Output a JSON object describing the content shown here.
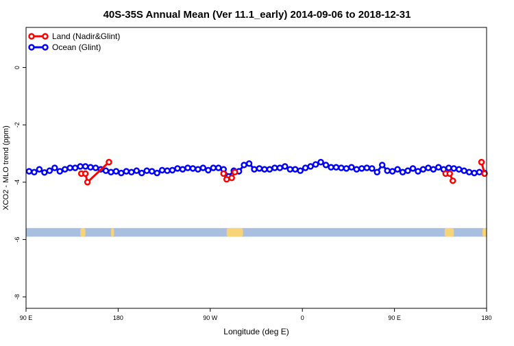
{
  "chart_data": {
    "type": "line",
    "title": "40S-35S Annual Mean (Ver 11.1_early)   2014-09-06 to 2018-12-31",
    "xlabel": "Longitude (deg E)",
    "ylabel": "XCO2 - MLO trend (ppm)",
    "x_tick_labels": [
      "90 E",
      "180",
      "90 W",
      "0",
      "90 E",
      "180"
    ],
    "x_tick_positions": [
      90,
      180,
      270,
      360,
      450,
      540
    ],
    "xlim": [
      90,
      540
    ],
    "y_ticks": [
      0,
      -2,
      -4,
      -6,
      -8
    ],
    "ylim": [
      -8.4,
      1.4
    ],
    "grid": false,
    "legend_position": "top-left",
    "colors": {
      "land": "#ff0000",
      "ocean": "#0000ff",
      "water_band": "#a8bfe0",
      "land_band": "#f7d37a"
    },
    "land_band_y": [
      -5.6,
      -5.9
    ],
    "land_patches": [
      [
        143,
        148
      ],
      [
        173,
        176
      ],
      [
        286,
        302
      ],
      [
        499,
        508
      ],
      [
        536,
        540
      ]
    ],
    "series": [
      {
        "name": "Land (Nadir&Glint)",
        "key": "land",
        "segments": [
          [
            [
              144,
              -3.7
            ],
            [
              148,
              -3.7
            ],
            [
              150,
              -4.0
            ],
            [
              171,
              -3.3
            ]
          ],
          [
            [
              283,
              -3.7
            ],
            [
              286,
              -3.9
            ],
            [
              291,
              -3.85
            ],
            [
              294,
              -3.65
            ]
          ],
          [
            [
              500,
              -3.7
            ],
            [
              504,
              -3.7
            ],
            [
              507,
              -3.95
            ]
          ],
          [
            [
              535,
              -3.3
            ],
            [
              538,
              -3.7
            ]
          ]
        ]
      },
      {
        "name": "Ocean (Glint)",
        "key": "ocean",
        "x": [
          93,
          98,
          103,
          108,
          113,
          118,
          123,
          128,
          133,
          138,
          143,
          148,
          153,
          158,
          163,
          168,
          173,
          178,
          183,
          188,
          193,
          198,
          203,
          208,
          213,
          218,
          223,
          228,
          233,
          238,
          243,
          248,
          253,
          258,
          263,
          268,
          273,
          278,
          283,
          288,
          293,
          298,
          303,
          308,
          313,
          318,
          323,
          328,
          333,
          338,
          343,
          348,
          353,
          358,
          363,
          368,
          373,
          378,
          383,
          388,
          393,
          398,
          403,
          408,
          413,
          418,
          423,
          428,
          433,
          438,
          443,
          448,
          453,
          458,
          463,
          468,
          473,
          478,
          483,
          488,
          493,
          498,
          503,
          508,
          513,
          518,
          523,
          528,
          533,
          538
        ],
        "y": [
          -3.62,
          -3.65,
          -3.55,
          -3.66,
          -3.6,
          -3.5,
          -3.62,
          -3.55,
          -3.5,
          -3.5,
          -3.45,
          -3.45,
          -3.48,
          -3.5,
          -3.55,
          -3.6,
          -3.65,
          -3.62,
          -3.68,
          -3.62,
          -3.65,
          -3.6,
          -3.68,
          -3.6,
          -3.62,
          -3.68,
          -3.58,
          -3.6,
          -3.58,
          -3.52,
          -3.55,
          -3.5,
          -3.52,
          -3.55,
          -3.5,
          -3.58,
          -3.5,
          -3.5,
          -3.55,
          -3.8,
          -3.6,
          -3.62,
          -3.4,
          -3.35,
          -3.55,
          -3.52,
          -3.55,
          -3.55,
          -3.5,
          -3.5,
          -3.45,
          -3.55,
          -3.55,
          -3.6,
          -3.5,
          -3.45,
          -3.38,
          -3.3,
          -3.4,
          -3.48,
          -3.48,
          -3.5,
          -3.52,
          -3.48,
          -3.55,
          -3.52,
          -3.5,
          -3.52,
          -3.65,
          -3.4,
          -3.6,
          -3.62,
          -3.55,
          -3.65,
          -3.6,
          -3.52,
          -3.62,
          -3.55,
          -3.5,
          -3.55,
          -3.48,
          -3.55,
          -3.5,
          -3.52,
          -3.55,
          -3.6,
          -3.65,
          -3.68,
          -3.65,
          -3.68
        ]
      }
    ]
  }
}
